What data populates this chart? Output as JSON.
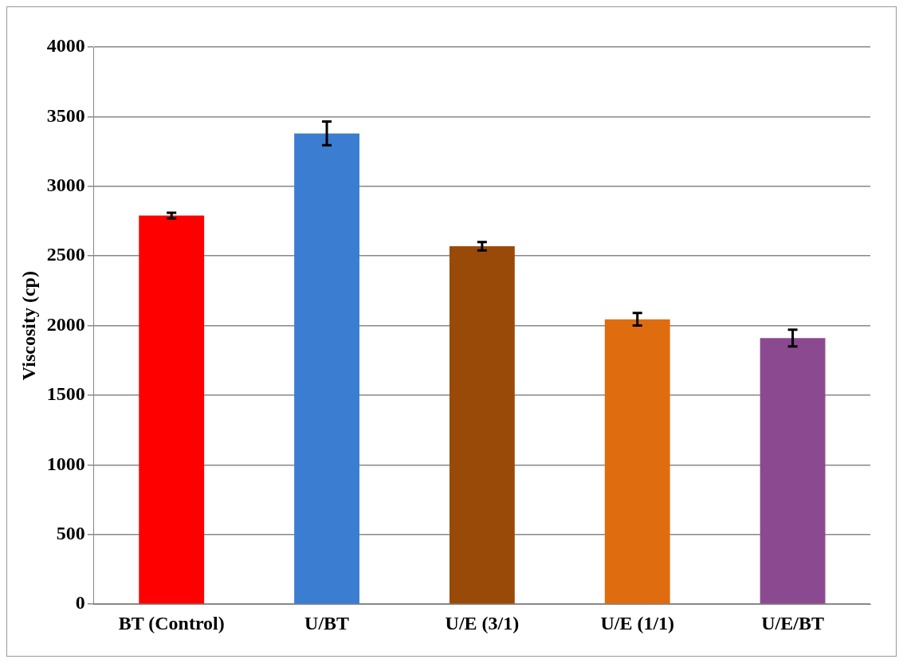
{
  "chart_data": {
    "type": "bar",
    "ylabel": "Viscosity (cp)",
    "categories": [
      "BT (Control)",
      "U/BT",
      "U/E (3/1)",
      "U/E (1/1)",
      "U/E/BT"
    ],
    "values": [
      2790,
      3380,
      2570,
      2045,
      1910
    ],
    "colors": [
      "#ff0000",
      "#3b7dd0",
      "#9a4a08",
      "#e06c10",
      "#8b4a90"
    ],
    "errors": [
      20,
      85,
      30,
      45,
      60
    ],
    "ylim": [
      0,
      4000
    ],
    "yticks": [
      0,
      500,
      1000,
      1500,
      2000,
      2500,
      3000,
      3500,
      4000
    ],
    "grid": "y",
    "legend": false
  }
}
